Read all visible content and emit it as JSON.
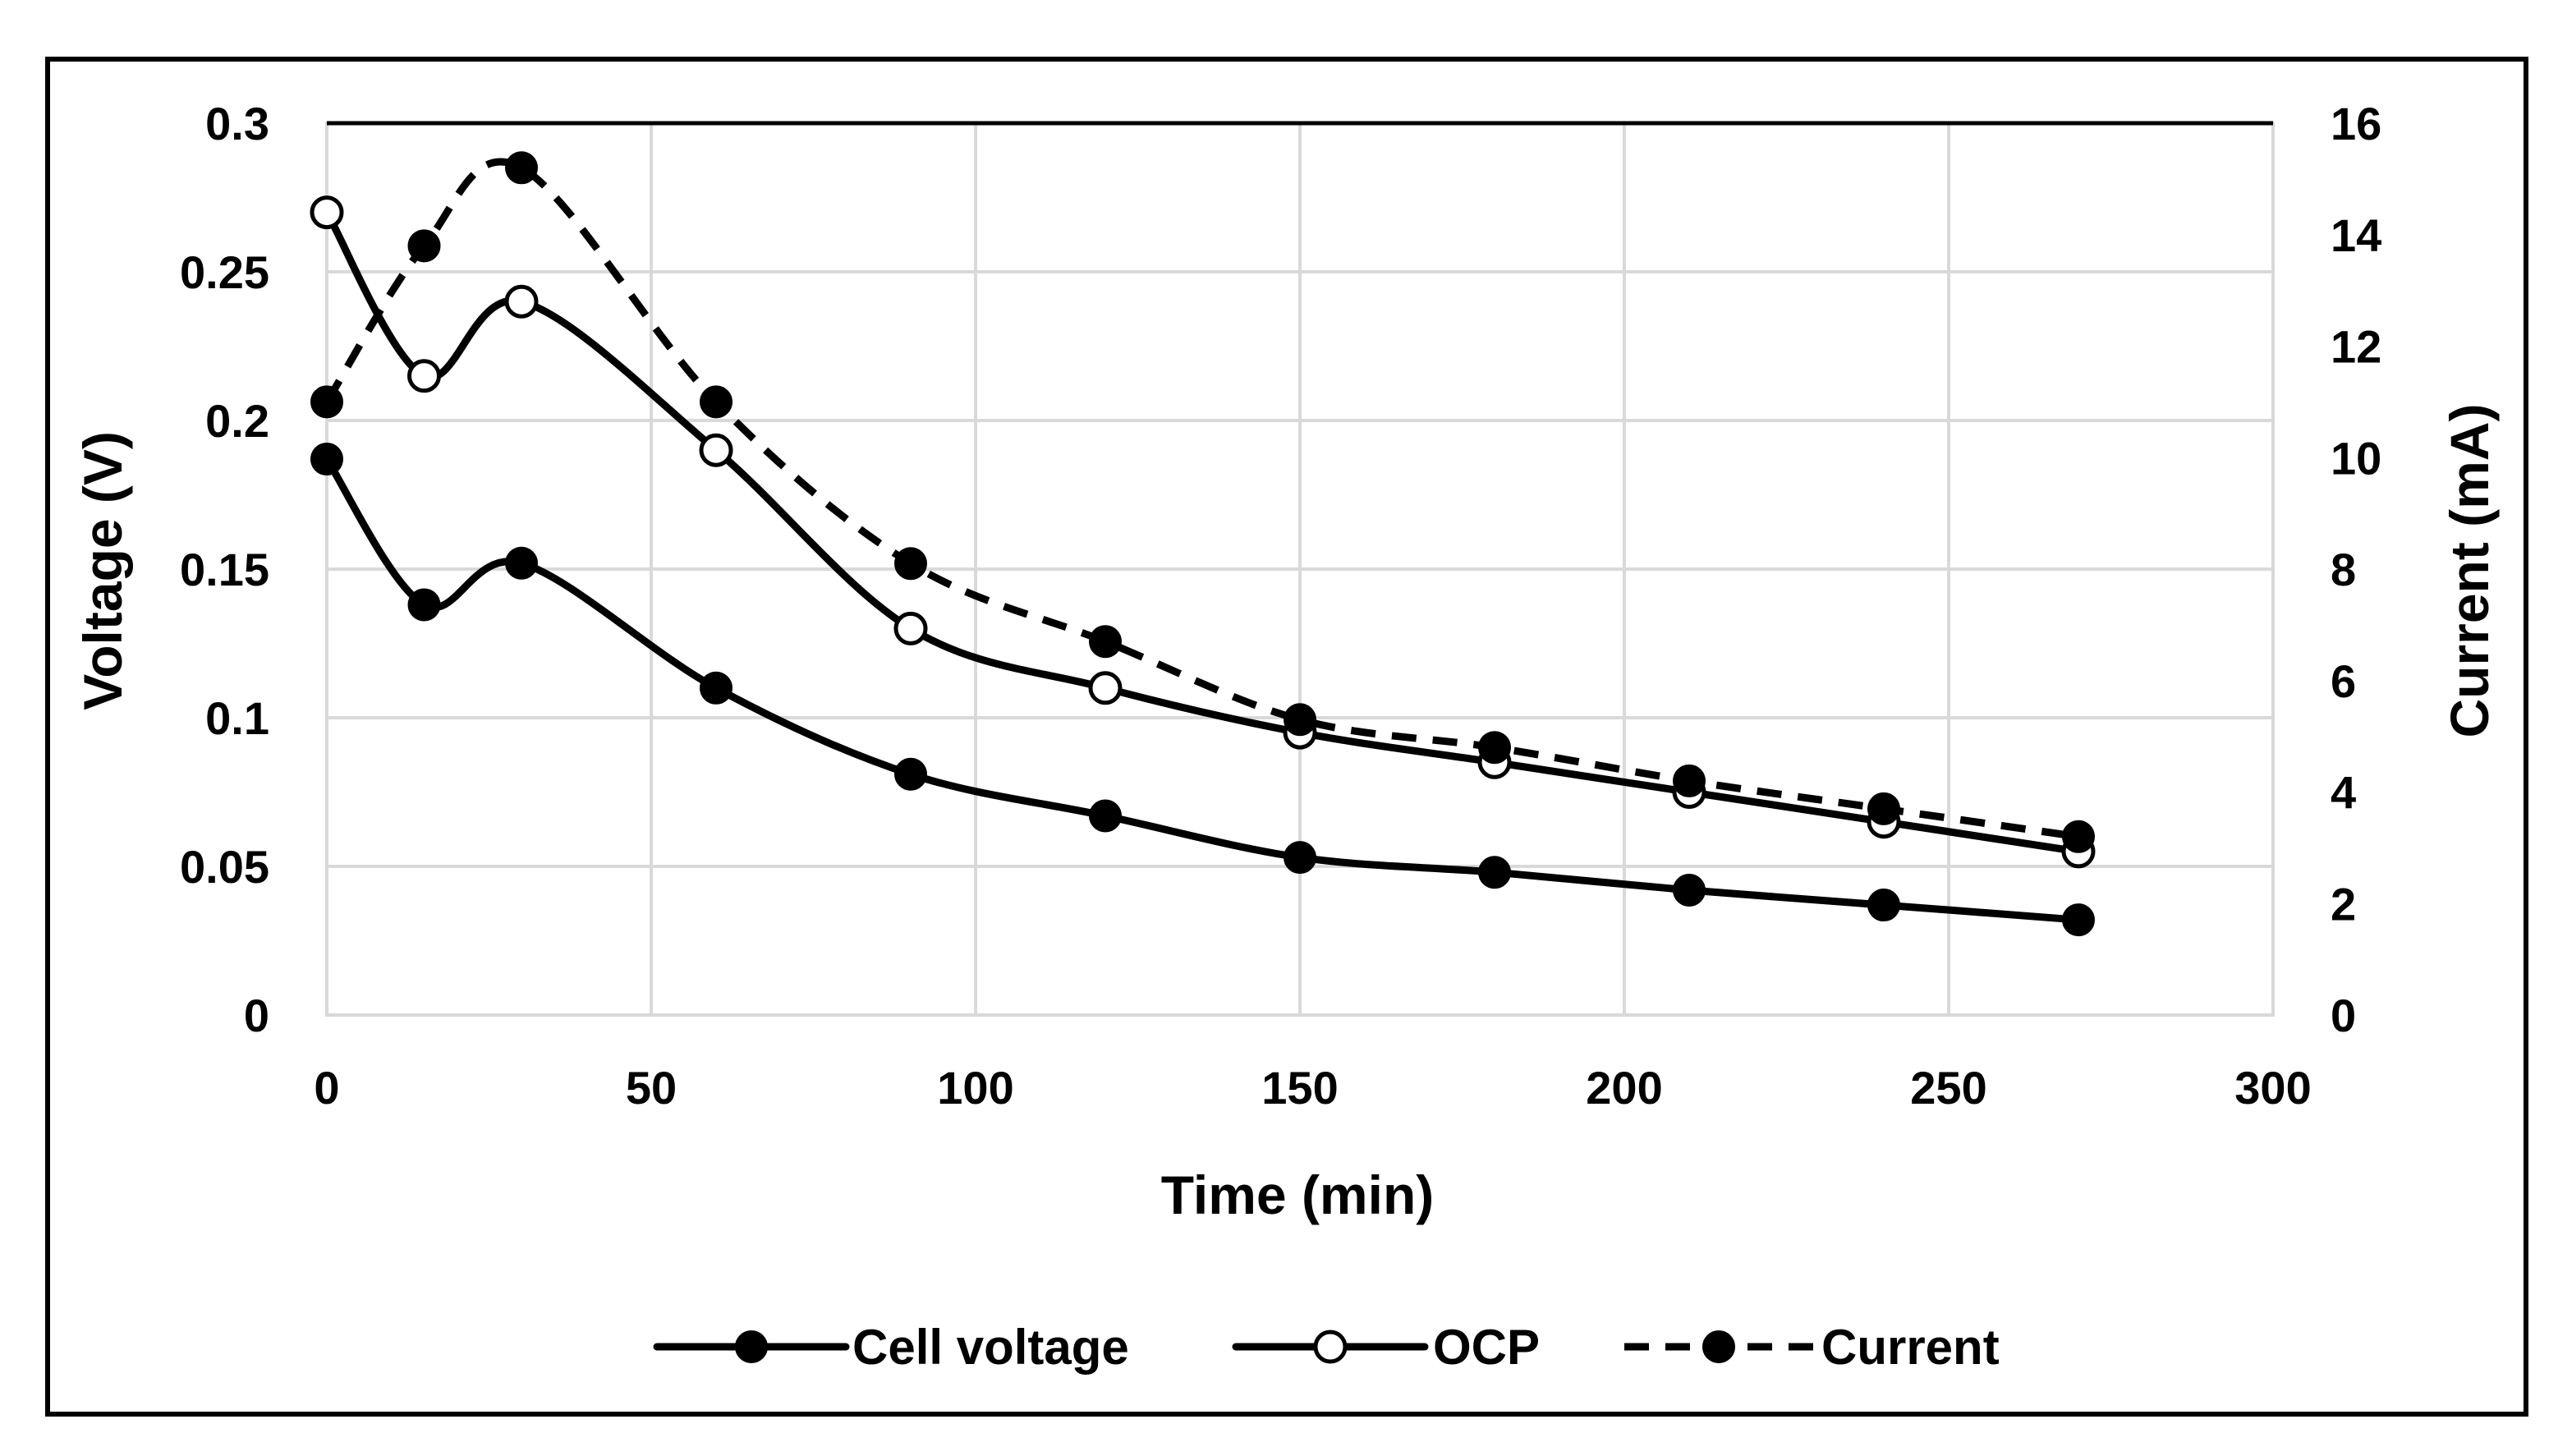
{
  "chart_data": {
    "type": "line",
    "title": "",
    "xlabel": "Time (min)",
    "ylabel": "Voltage (V)",
    "y2label": "Current (mA)",
    "xlim": [
      0,
      300
    ],
    "ylim": [
      0,
      0.3
    ],
    "y2lim": [
      0,
      16
    ],
    "x_ticks": [
      "0",
      "50",
      "100",
      "150",
      "200",
      "250",
      "300"
    ],
    "y_ticks": [
      "0",
      "0.05",
      "0.1",
      "0.15",
      "0.2",
      "0.25",
      "0.3"
    ],
    "y2_ticks": [
      "0",
      "2",
      "4",
      "6",
      "8",
      "10",
      "12",
      "14",
      "16"
    ],
    "grid": true,
    "legend_position": "bottom",
    "series": [
      {
        "name": "Cell voltage",
        "axis": "left",
        "style": "solid",
        "marker": "filled-circle",
        "x": [
          0,
          15,
          30,
          60,
          90,
          120,
          150,
          180,
          210,
          240,
          270
        ],
        "values": [
          0.187,
          0.138,
          0.152,
          0.11,
          0.081,
          0.067,
          0.053,
          0.048,
          0.042,
          0.037,
          0.032
        ]
      },
      {
        "name": "OCP",
        "axis": "left",
        "style": "solid",
        "marker": "open-circle",
        "x": [
          0,
          15,
          30,
          60,
          90,
          120,
          150,
          180,
          210,
          240,
          270
        ],
        "values": [
          0.27,
          0.215,
          0.24,
          0.19,
          0.13,
          0.11,
          0.095,
          0.085,
          0.075,
          0.065,
          0.055
        ]
      },
      {
        "name": "Current",
        "axis": "right",
        "style": "dashed",
        "marker": "filled-circle",
        "x": [
          0,
          15,
          30,
          60,
          90,
          120,
          150,
          180,
          210,
          240,
          270
        ],
        "values": [
          11.0,
          13.8,
          15.2,
          11.0,
          8.1,
          6.7,
          5.3,
          4.8,
          4.2,
          3.7,
          3.2
        ]
      }
    ]
  }
}
